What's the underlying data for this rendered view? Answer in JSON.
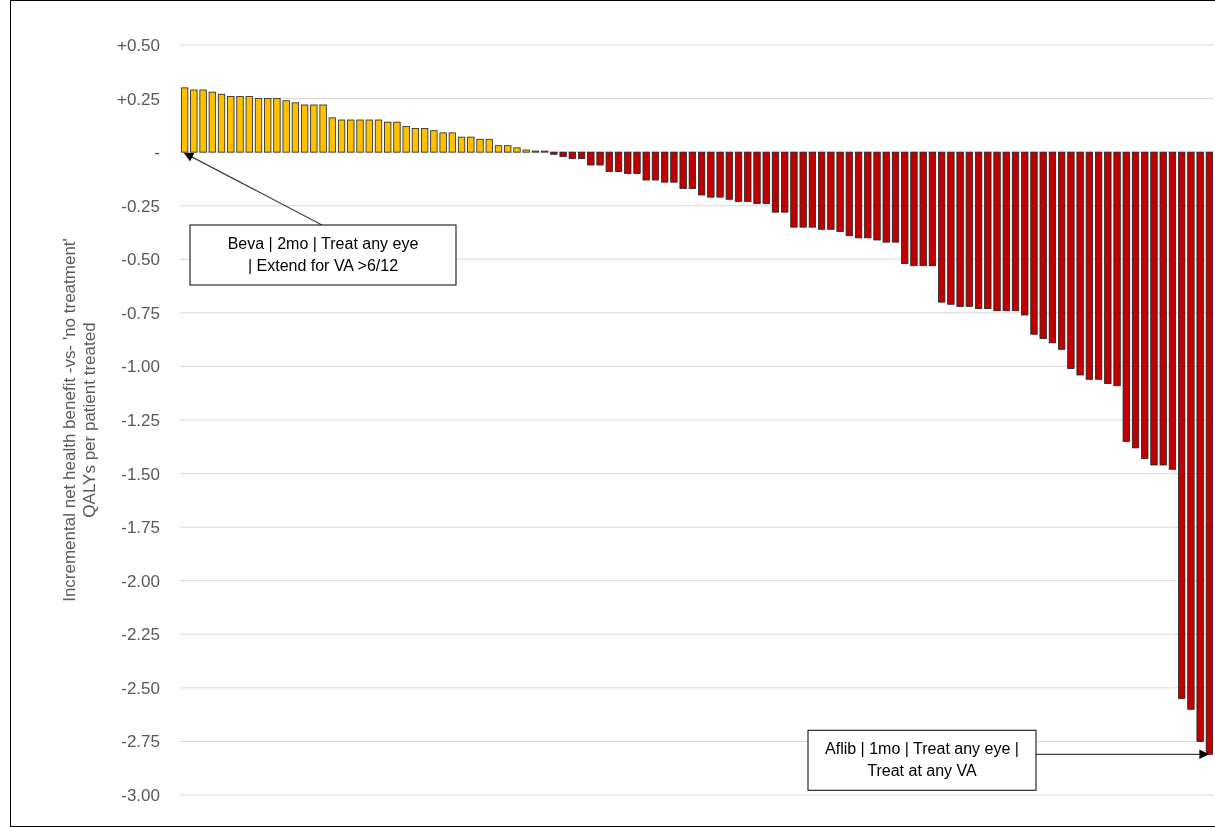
{
  "chart_data": {
    "type": "bar",
    "ylabel": "Incremental net health benefit -vs- 'no treatment'\nQALYs per patient treated",
    "categories": [
      null,
      null,
      null,
      null,
      null,
      null,
      null,
      null,
      null,
      null,
      null,
      null,
      null,
      null,
      null,
      null,
      null,
      null,
      null,
      null,
      null,
      null,
      null,
      null,
      null,
      null,
      null,
      null,
      null,
      null,
      null,
      null,
      null,
      null,
      null,
      null,
      null,
      null,
      null,
      null,
      null,
      null,
      null,
      null,
      null,
      null,
      null,
      null,
      null,
      null,
      null,
      null,
      null,
      null,
      null,
      null,
      null,
      null,
      null,
      null,
      null,
      null,
      null,
      null,
      null,
      null,
      null,
      null,
      null,
      null,
      null,
      null,
      null,
      null,
      null,
      null,
      null,
      null,
      null,
      null,
      null,
      null,
      null,
      null,
      null,
      null,
      null,
      null,
      null,
      null,
      null,
      null,
      null,
      null,
      null,
      null,
      null,
      null,
      null,
      null,
      null,
      null,
      null,
      null,
      null,
      null,
      null,
      null,
      null,
      null,
      null,
      null
    ],
    "values": [
      0.3,
      0.29,
      0.29,
      0.28,
      0.27,
      0.26,
      0.26,
      0.26,
      0.25,
      0.25,
      0.25,
      0.24,
      0.23,
      0.22,
      0.22,
      0.22,
      0.16,
      0.15,
      0.15,
      0.15,
      0.15,
      0.15,
      0.14,
      0.14,
      0.12,
      0.11,
      0.11,
      0.1,
      0.09,
      0.09,
      0.07,
      0.07,
      0.06,
      0.06,
      0.03,
      0.03,
      0.02,
      0.01,
      0.005,
      0.005,
      -0.01,
      -0.02,
      -0.03,
      -0.03,
      -0.06,
      -0.06,
      -0.09,
      -0.09,
      -0.1,
      -0.1,
      -0.13,
      -0.13,
      -0.14,
      -0.14,
      -0.17,
      -0.17,
      -0.2,
      -0.21,
      -0.21,
      -0.22,
      -0.23,
      -0.23,
      -0.24,
      -0.24,
      -0.28,
      -0.28,
      -0.35,
      -0.35,
      -0.35,
      -0.36,
      -0.36,
      -0.37,
      -0.39,
      -0.4,
      -0.4,
      -0.41,
      -0.42,
      -0.42,
      -0.52,
      -0.53,
      -0.53,
      -0.53,
      -0.7,
      -0.71,
      -0.72,
      -0.72,
      -0.73,
      -0.73,
      -0.74,
      -0.74,
      -0.74,
      -0.76,
      -0.85,
      -0.87,
      -0.89,
      -0.92,
      -1.01,
      -1.04,
      -1.06,
      -1.06,
      -1.08,
      -1.09,
      -1.35,
      -1.38,
      -1.43,
      -1.46,
      -1.46,
      -1.48,
      -2.55,
      -2.6,
      -2.75,
      -2.81
    ],
    "colors": [
      "#ffc000",
      "#ffc000",
      "#ffc000",
      "#ffc000",
      "#ffc000",
      "#ffc000",
      "#ffc000",
      "#ffc000",
      "#ffc000",
      "#ffc000",
      "#ffc000",
      "#ffc000",
      "#ffc000",
      "#ffc000",
      "#ffc000",
      "#ffc000",
      "#ffc000",
      "#ffc000",
      "#ffc000",
      "#ffc000",
      "#ffc000",
      "#ffc000",
      "#ffc000",
      "#ffc000",
      "#ffc000",
      "#ffc000",
      "#ffc000",
      "#ffc000",
      "#ffc000",
      "#ffc000",
      "#ffc000",
      "#ffc000",
      "#ffc000",
      "#ffc000",
      "#ffc000",
      "#ffc000",
      "#ffc000",
      "#ffc000",
      "#ffc000",
      "#ffc000",
      "#c00000",
      "#c00000",
      "#c00000",
      "#c00000",
      "#c00000",
      "#c00000",
      "#c00000",
      "#c00000",
      "#c00000",
      "#c00000",
      "#c00000",
      "#c00000",
      "#c00000",
      "#c00000",
      "#c00000",
      "#c00000",
      "#c00000",
      "#c00000",
      "#c00000",
      "#c00000",
      "#c00000",
      "#c00000",
      "#c00000",
      "#c00000",
      "#c00000",
      "#c00000",
      "#c00000",
      "#c00000",
      "#c00000",
      "#c00000",
      "#c00000",
      "#c00000",
      "#c00000",
      "#c00000",
      "#c00000",
      "#c00000",
      "#c00000",
      "#c00000",
      "#c00000",
      "#c00000",
      "#c00000",
      "#c00000",
      "#c00000",
      "#c00000",
      "#c00000",
      "#c00000",
      "#c00000",
      "#c00000",
      "#c00000",
      "#c00000",
      "#c00000",
      "#c00000",
      "#c00000",
      "#c00000",
      "#c00000",
      "#c00000",
      "#c00000",
      "#c00000",
      "#c00000",
      "#c00000",
      "#c00000",
      "#c00000",
      "#c00000",
      "#c00000",
      "#c00000",
      "#c00000",
      "#c00000",
      "#c00000",
      "#c00000",
      "#c00000",
      "#c00000",
      "#c00000"
    ],
    "ylim": [
      -3.0,
      0.5
    ],
    "yticks": [
      {
        "value": 0.5,
        "label": "+0.50"
      },
      {
        "value": 0.25,
        "label": "+0.25"
      },
      {
        "value": 0,
        "label": "-"
      },
      {
        "value": -0.25,
        "label": "-0.25"
      },
      {
        "value": -0.5,
        "label": "-0.50"
      },
      {
        "value": -0.75,
        "label": "-0.75"
      },
      {
        "value": -1,
        "label": "-1.00"
      },
      {
        "value": -1.25,
        "label": "-1.25"
      },
      {
        "value": -1.5,
        "label": "-1.50"
      },
      {
        "value": -1.75,
        "label": "-1.75"
      },
      {
        "value": -2,
        "label": "-2.00"
      },
      {
        "value": -2.25,
        "label": "-2.25"
      },
      {
        "value": -2.5,
        "label": "-2.50"
      },
      {
        "value": -2.75,
        "label": "-2.75"
      },
      {
        "value": -3,
        "label": "-3.00"
      }
    ],
    "grid": "y",
    "tick_labels": "y",
    "annotations": [
      "Beva | 2mo | Treat any eye | Extend for VA >6/12",
      "Aflib | 1mo | Treat any eye | Treat at any VA"
    ]
  }
}
